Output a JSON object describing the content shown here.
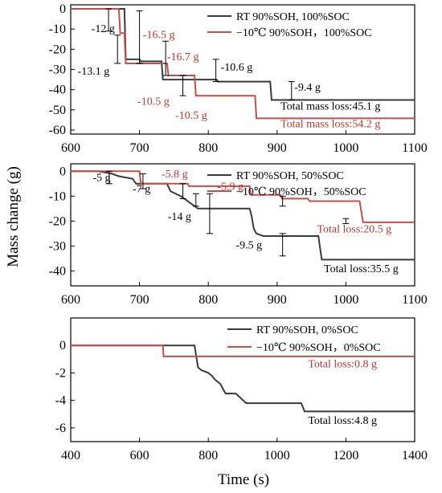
{
  "colors": {
    "rt": "#3a3a3a",
    "cold": "#c0504d",
    "text": "#000000",
    "red_text": "#b03a36"
  },
  "chart_data": [
    {
      "type": "line",
      "xlim": [
        600,
        1100
      ],
      "ylim": [
        -62,
        2
      ],
      "xticks": [
        600,
        700,
        800,
        900,
        1000,
        1100
      ],
      "xtick_labels": [
        "600",
        "700",
        "800",
        "900",
        "1000",
        "1100"
      ],
      "yticks": [
        0,
        -10,
        -20,
        -30,
        -40,
        -50,
        -60
      ],
      "ytick_labels": [
        "0",
        "-10",
        "-20",
        "-30",
        "-40",
        "-50",
        "-60"
      ],
      "legend_position": "top-right",
      "series": [
        {
          "name": "RT 90%SOH, 100%SOC",
          "color_key": "rt",
          "x": [
            600,
            678,
            680,
            700,
            702,
            732,
            734,
            812,
            814,
            890,
            892,
            1100
          ],
          "y": [
            0,
            0,
            -25,
            -25,
            -26,
            -26,
            -35,
            -35,
            -36,
            -36,
            -45.1,
            -45.1
          ]
        },
        {
          "name": "−10℃ 90%SOH，100%SOC",
          "color_key": "cold",
          "x": [
            600,
            670,
            672,
            678,
            680,
            740,
            742,
            780,
            782,
            868,
            870,
            1100
          ],
          "y": [
            0,
            0,
            -12,
            -12,
            -27,
            -27,
            -33,
            -33,
            -43,
            -43,
            -54.2,
            -54.2
          ]
        }
      ],
      "annotations": [
        {
          "text": "-12 g",
          "x": 630,
          "y": -11.5,
          "color_key": "text"
        },
        {
          "text": "-16.5 g",
          "x": 705,
          "y": -14.5,
          "color_key": "red_text"
        },
        {
          "text": "-13.1 g",
          "x": 610,
          "y": -32.5,
          "color_key": "text"
        },
        {
          "text": "-16.7 g",
          "x": 740,
          "y": -25.5,
          "color_key": "red_text"
        },
        {
          "text": "-10.6 g",
          "x": 818,
          "y": -30.5,
          "color_key": "text"
        },
        {
          "text": "-10.5 g",
          "x": 697,
          "y": -47.5,
          "color_key": "red_text"
        },
        {
          "text": "-9.4 g",
          "x": 925,
          "y": -40.5,
          "color_key": "text"
        },
        {
          "text": "-10.5 g",
          "x": 752,
          "y": -54.5,
          "color_key": "red_text"
        },
        {
          "text": "Total mass loss:45.1 g",
          "x": 905,
          "y": -49.8,
          "color_key": "text"
        },
        {
          "text": "Total mass loss:54.2 g",
          "x": 905,
          "y": -58.6,
          "color_key": "red_text"
        }
      ],
      "error_bars": [
        {
          "x": 655,
          "y_low": -11,
          "y_high": 0
        },
        {
          "x": 668,
          "y_low": -27,
          "y_high": -13
        },
        {
          "x": 700,
          "y_low": -27,
          "y_high": -1
        },
        {
          "x": 738,
          "y_low": -33,
          "y_high": -16
        },
        {
          "x": 763,
          "y_low": -43,
          "y_high": -33
        },
        {
          "x": 811,
          "y_low": -36,
          "y_high": -25
        },
        {
          "x": 921,
          "y_low": -45,
          "y_high": -36
        }
      ]
    },
    {
      "type": "line",
      "xlim": [
        600,
        1100
      ],
      "ylim": [
        -46,
        3
      ],
      "xticks": [
        600,
        700,
        800,
        900,
        1000,
        1100
      ],
      "xtick_labels": [
        "600",
        "700",
        "800",
        "900",
        "1000",
        "1100"
      ],
      "yticks": [
        0,
        -10,
        -20,
        -30,
        -40
      ],
      "ytick_labels": [
        "0",
        "-10",
        "-20",
        "-30",
        "-40"
      ],
      "legend_position": "top-right",
      "series": [
        {
          "name": "RT 90%SOH, 50%SOC",
          "color_key": "rt",
          "x": [
            600,
            640,
            660,
            670,
            690,
            695,
            740,
            745,
            760,
            775,
            780,
            785,
            790,
            795,
            860,
            863,
            866,
            870,
            880,
            900,
            960,
            962,
            965,
            1100
          ],
          "y": [
            0,
            0,
            -1,
            -2,
            -3,
            -5,
            -5,
            -8,
            -10,
            -13,
            -14,
            -15,
            -15,
            -15,
            -15,
            -18,
            -23,
            -25,
            -26,
            -26,
            -26,
            -30,
            -35.5,
            -35.5
          ]
        },
        {
          "name": "−10℃ 90%SOH，50%SOC",
          "color_key": "cold",
          "x": [
            600,
            700,
            702,
            770,
            772,
            860,
            862,
            905,
            907,
            945,
            947,
            1020,
            1025,
            1100
          ],
          "y": [
            0,
            0,
            -5,
            -5,
            -6,
            -6,
            -9.5,
            -9.5,
            -11,
            -11,
            -12,
            -12,
            -20.5,
            -20.5
          ]
        }
      ],
      "annotations": [
        {
          "text": "-5 g",
          "x": 632,
          "y": -4,
          "color_key": "text"
        },
        {
          "text": "-5.8 g",
          "x": 732,
          "y": -2.5,
          "color_key": "red_text"
        },
        {
          "text": "-7 g",
          "x": 690,
          "y": -8.5,
          "color_key": "text"
        },
        {
          "text": "-5.9 g",
          "x": 813,
          "y": -7.5,
          "color_key": "red_text"
        },
        {
          "text": "-14 g",
          "x": 741,
          "y": -19.5,
          "color_key": "text"
        },
        {
          "text": "Total  loss:20.5 g",
          "x": 958,
          "y": -24.5,
          "color_key": "red_text"
        },
        {
          "text": "-9.5 g",
          "x": 840,
          "y": -31,
          "color_key": "text"
        },
        {
          "text": "Total loss:35.5 g",
          "x": 968,
          "y": -40.5,
          "color_key": "text"
        }
      ],
      "error_bars": [
        {
          "x": 656,
          "y_low": -5,
          "y_high": 0
        },
        {
          "x": 705,
          "y_low": -7,
          "y_high": -1
        },
        {
          "x": 763,
          "y_low": -11,
          "y_high": -5
        },
        {
          "x": 782,
          "y_low": -14,
          "y_high": -9
        },
        {
          "x": 802,
          "y_low": -25,
          "y_high": -9
        },
        {
          "x": 908,
          "y_low": -14,
          "y_high": -10
        },
        {
          "x": 908,
          "y_low": -34,
          "y_high": -25
        },
        {
          "x": 1000,
          "y_low": -21,
          "y_high": -19
        }
      ]
    },
    {
      "type": "line",
      "xlim": [
        400,
        1400
      ],
      "ylim": [
        -7,
        2
      ],
      "xticks": [
        400,
        600,
        800,
        1000,
        1200,
        1400
      ],
      "xtick_labels": [
        "400",
        "600",
        "800",
        "1000",
        "1200",
        "1400"
      ],
      "yticks": [
        0,
        -2,
        -4,
        -6
      ],
      "ytick_labels": [
        "0",
        "-2",
        "-4",
        "-6"
      ],
      "xlabel": "Time (s)",
      "legend_position": "top-right",
      "series": [
        {
          "name": "RT 90%SOH, 0%SOC",
          "color_key": "rt",
          "x": [
            400,
            760,
            770,
            780,
            790,
            800,
            810,
            820,
            835,
            850,
            880,
            910,
            1070,
            1080,
            1400
          ],
          "y": [
            0,
            0,
            -1.6,
            -1.8,
            -1.9,
            -2.0,
            -2.2,
            -2.5,
            -2.8,
            -3.5,
            -3.5,
            -4.2,
            -4.2,
            -4.8,
            -4.8
          ]
        },
        {
          "name": "−10℃ 90%SOH，0%SOC",
          "color_key": "cold",
          "x": [
            400,
            668,
            670,
            1400
          ],
          "y": [
            0,
            0,
            -0.8,
            -0.8
          ]
        }
      ],
      "annotations": [
        {
          "text": "Total  loss:0.8 g",
          "x": 1090,
          "y": -1.6,
          "color_key": "red_text"
        },
        {
          "text": "Total  loss:4.8 g",
          "x": 1090,
          "y": -5.7,
          "color_key": "text"
        }
      ],
      "error_bars": []
    }
  ],
  "shared": {
    "ylabel": "Mass change (g)"
  }
}
